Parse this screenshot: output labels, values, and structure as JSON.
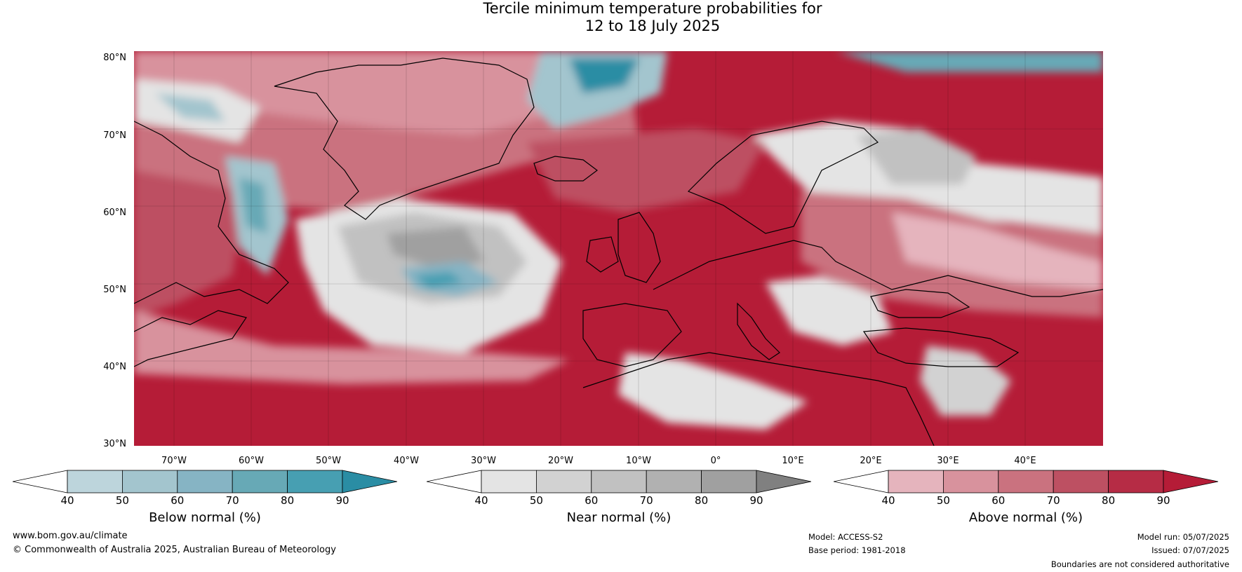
{
  "title_line1": "Tercile minimum temperature probabilities for",
  "title_line2": "12 to 18 July 2025",
  "lat_labels": [
    "80°N",
    "70°N",
    "60°N",
    "50°N",
    "40°N",
    "30°N"
  ],
  "lon_labels": [
    "70°W",
    "60°W",
    "50°W",
    "40°W",
    "30°W",
    "20°W",
    "10°W",
    "0°",
    "10°E",
    "20°E",
    "30°E",
    "40°E"
  ],
  "colorbars": [
    {
      "title": "Below normal (%)",
      "ticks": [
        "40",
        "50",
        "60",
        "70",
        "80",
        "90"
      ],
      "colors": [
        "#ffffff",
        "#bdd5dc",
        "#a3c5ce",
        "#86b4c4",
        "#67a9b6",
        "#479fb2",
        "#2a8da4"
      ]
    },
    {
      "title": "Near normal (%)",
      "ticks": [
        "40",
        "50",
        "60",
        "70",
        "80",
        "90"
      ],
      "colors": [
        "#ffffff",
        "#e4e4e4",
        "#d2d2d2",
        "#c1c1c1",
        "#b1b1b1",
        "#a0a0a0",
        "#808080"
      ]
    },
    {
      "title": "Above normal (%)",
      "ticks": [
        "40",
        "50",
        "60",
        "70",
        "80",
        "90"
      ],
      "colors": [
        "#ffffff",
        "#e5b4bd",
        "#d8929d",
        "#ca727f",
        "#bd5062",
        "#b62c45",
        "#b51c37"
      ]
    }
  ],
  "footer": {
    "website": "www.bom.gov.au/climate",
    "copyright": "© Commonwealth of Australia 2025, Australian Bureau of Meteorology",
    "model": "Model: ACCESS-S2",
    "base_period": "Base period: 1981-2018",
    "model_run": "Model run: 05/07/2025",
    "issued": "Issued: 07/07/2025",
    "disclaimer": "Boundaries are not considered authoritative"
  }
}
